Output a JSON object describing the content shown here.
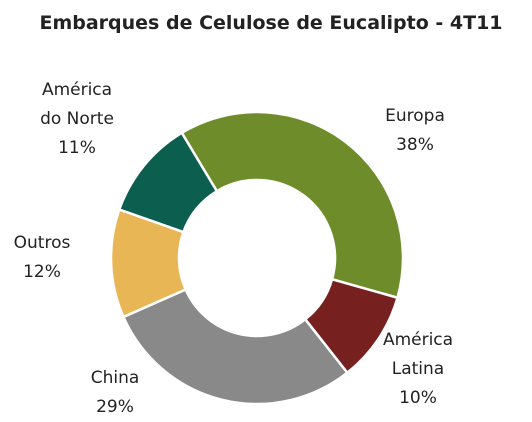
{
  "chart_data": {
    "type": "donut",
    "title": "Embarques de Celulose de Eucalipto - 4T11",
    "categories": [
      "Europa",
      "América Latina",
      "China",
      "Outros",
      "América do Norte"
    ],
    "values": [
      38,
      10,
      29,
      12,
      11
    ],
    "value_labels": [
      "38%",
      "10%",
      "29%",
      "12%",
      "11%"
    ],
    "colors": [
      "#6e8d2a",
      "#76211f",
      "#898989",
      "#e9b655",
      "#0c5e4f"
    ]
  }
}
